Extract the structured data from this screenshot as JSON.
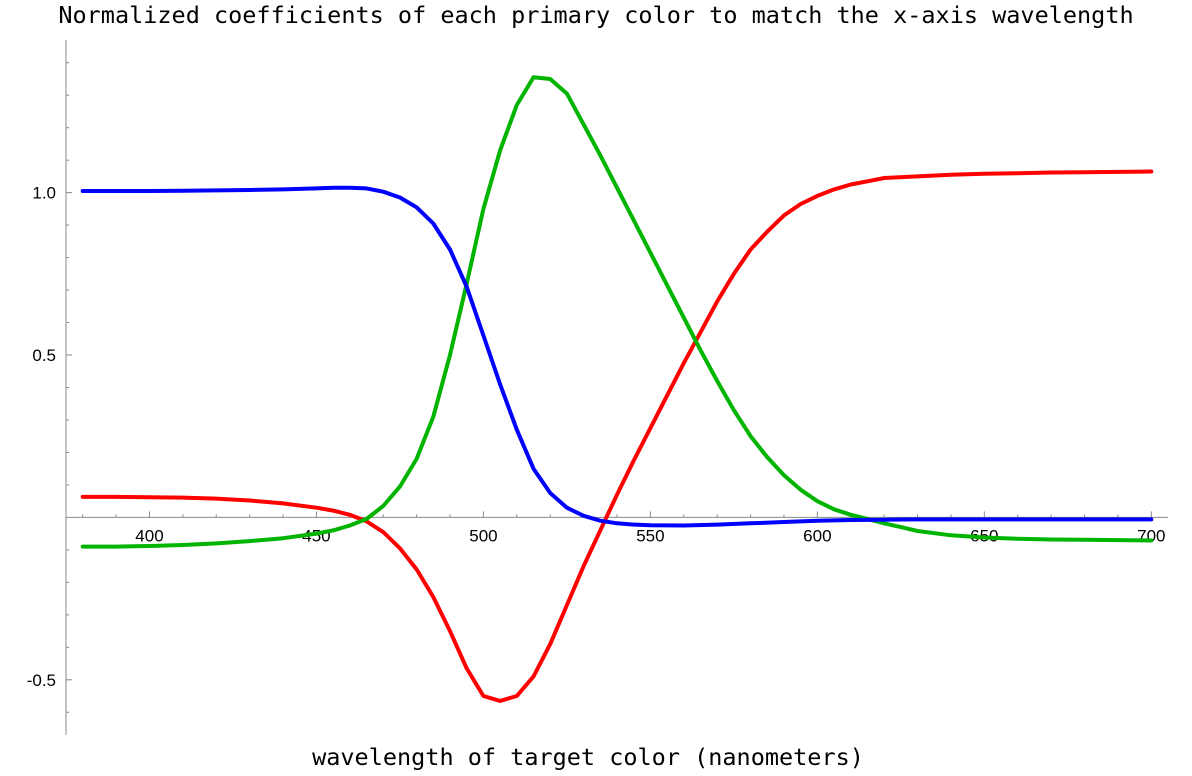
{
  "chart_data": {
    "type": "line",
    "title": "Normalized coefficients of each primary color to match the x-axis wavelength",
    "xlabel": "wavelength of target color (nanometers)",
    "ylabel": "",
    "xlim": [
      375,
      705
    ],
    "ylim": [
      -0.67,
      1.47
    ],
    "x_ticks": [
      400,
      450,
      500,
      550,
      600,
      650,
      700
    ],
    "x_tick_labels": [
      "400",
      "450",
      "500",
      "550",
      "600",
      "650",
      "700"
    ],
    "y_ticks": [
      -0.5,
      0.5,
      1.0
    ],
    "y_tick_labels": [
      "-0.5",
      "0.5",
      "1.0"
    ],
    "grid": false,
    "legend": "none",
    "series": [
      {
        "color": "#ff0000",
        "x": [
          380,
          390,
          400,
          410,
          420,
          430,
          440,
          450,
          455,
          460,
          465,
          470,
          475,
          480,
          485,
          490,
          495,
          500,
          505,
          510,
          515,
          520,
          525,
          530,
          535,
          540,
          545,
          550,
          555,
          560,
          565,
          570,
          575,
          580,
          585,
          590,
          595,
          600,
          605,
          610,
          615,
          620,
          630,
          640,
          650,
          660,
          670,
          680,
          690,
          700
        ],
        "y": [
          0.063,
          0.063,
          0.062,
          0.061,
          0.058,
          0.052,
          0.043,
          0.03,
          0.021,
          0.008,
          -0.012,
          -0.045,
          -0.095,
          -0.16,
          -0.245,
          -0.35,
          -0.465,
          -0.55,
          -0.565,
          -0.55,
          -0.49,
          -0.39,
          -0.27,
          -0.15,
          -0.04,
          0.07,
          0.175,
          0.275,
          0.375,
          0.475,
          0.57,
          0.665,
          0.75,
          0.825,
          0.88,
          0.93,
          0.965,
          0.99,
          1.01,
          1.025,
          1.035,
          1.045,
          1.05,
          1.055,
          1.058,
          1.06,
          1.062,
          1.063,
          1.064,
          1.065
        ]
      },
      {
        "color": "#00b400",
        "x": [
          380,
          390,
          400,
          410,
          420,
          430,
          440,
          450,
          455,
          460,
          465,
          470,
          475,
          480,
          485,
          490,
          495,
          500,
          505,
          510,
          515,
          520,
          525,
          530,
          535,
          540,
          545,
          550,
          555,
          560,
          565,
          570,
          575,
          580,
          585,
          590,
          595,
          600,
          605,
          610,
          615,
          620,
          625,
          630,
          640,
          650,
          660,
          670,
          680,
          690,
          700
        ],
        "y": [
          -0.09,
          -0.09,
          -0.088,
          -0.085,
          -0.08,
          -0.073,
          -0.064,
          -0.05,
          -0.04,
          -0.025,
          -0.005,
          0.035,
          0.095,
          0.18,
          0.31,
          0.5,
          0.72,
          0.95,
          1.13,
          1.27,
          1.355,
          1.35,
          1.305,
          1.21,
          1.115,
          1.015,
          0.915,
          0.815,
          0.715,
          0.615,
          0.515,
          0.42,
          0.33,
          0.25,
          0.185,
          0.13,
          0.085,
          0.05,
          0.025,
          0.008,
          -0.005,
          -0.018,
          -0.03,
          -0.042,
          -0.055,
          -0.062,
          -0.066,
          -0.068,
          -0.069,
          -0.07,
          -0.071
        ]
      },
      {
        "color": "#0000ff",
        "x": [
          380,
          390,
          400,
          410,
          420,
          430,
          440,
          450,
          455,
          460,
          465,
          470,
          475,
          480,
          485,
          490,
          495,
          500,
          505,
          510,
          515,
          520,
          525,
          530,
          535,
          540,
          545,
          550,
          560,
          570,
          580,
          590,
          600,
          610,
          620,
          630,
          640,
          650,
          660,
          670,
          680,
          690,
          700
        ],
        "y": [
          1.005,
          1.005,
          1.005,
          1.006,
          1.007,
          1.008,
          1.01,
          1.013,
          1.015,
          1.015,
          1.013,
          1.003,
          0.985,
          0.955,
          0.905,
          0.825,
          0.71,
          0.56,
          0.41,
          0.27,
          0.15,
          0.075,
          0.03,
          0.005,
          -0.01,
          -0.018,
          -0.022,
          -0.024,
          -0.025,
          -0.022,
          -0.018,
          -0.014,
          -0.01,
          -0.008,
          -0.007,
          -0.006,
          -0.006,
          -0.006,
          -0.006,
          -0.006,
          -0.006,
          -0.006,
          -0.006
        ]
      }
    ]
  }
}
